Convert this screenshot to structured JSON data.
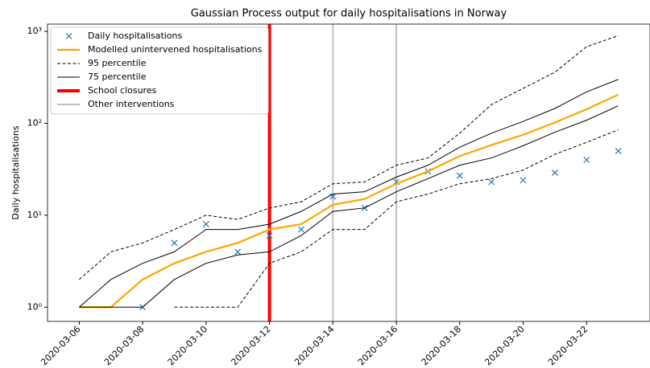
{
  "chart_data": {
    "type": "line",
    "title": "Gaussian Process output for daily hospitalisations in Norway",
    "ylabel": "Daily hospitalisations",
    "log_y": true,
    "x": [
      "2020-03-06",
      "2020-03-07",
      "2020-03-08",
      "2020-03-09",
      "2020-03-10",
      "2020-03-11",
      "2020-03-12",
      "2020-03-13",
      "2020-03-14",
      "2020-03-15",
      "2020-03-16",
      "2020-03-17",
      "2020-03-18",
      "2020-03-19",
      "2020-03-20",
      "2020-03-21",
      "2020-03-22",
      "2020-03-23"
    ],
    "xlim": [
      "2020-03-05",
      "2020-03-24"
    ],
    "xticks": [
      "2020-03-06",
      "2020-03-08",
      "2020-03-10",
      "2020-03-12",
      "2020-03-14",
      "2020-03-16",
      "2020-03-18",
      "2020-03-20",
      "2020-03-22"
    ],
    "ylim": [
      0.7,
      1200
    ],
    "yticks": [
      {
        "value": 1,
        "label": "10⁰"
      },
      {
        "value": 10,
        "label": "10¹"
      },
      {
        "value": 100,
        "label": "10²"
      },
      {
        "value": 1000,
        "label": "10³"
      }
    ],
    "legend": "upper left",
    "series": [
      {
        "name": "Daily hospitalisations",
        "color": "#1f77b4",
        "marker": "x",
        "values": [
          null,
          null,
          1,
          5,
          8,
          4,
          6,
          7,
          16,
          12,
          23,
          30,
          27,
          23,
          24,
          29,
          40,
          50
        ]
      },
      {
        "name": "Modelled unintervened hospitalisations",
        "color": "#ffa500",
        "width": 2.2,
        "values": [
          1,
          1,
          2,
          3,
          4,
          5,
          7,
          8,
          13,
          15,
          22,
          30,
          44,
          58,
          75,
          102,
          142,
          205
        ]
      },
      {
        "name": "95 percentile",
        "color": "#000000",
        "width": 1,
        "dash": true,
        "values": [
          2,
          4,
          5,
          7,
          10,
          9,
          12,
          14,
          22,
          23,
          35,
          42,
          78,
          160,
          240,
          360,
          680,
          900
        ],
        "lower": [
          null,
          null,
          null,
          1,
          1,
          1,
          3,
          4,
          7,
          7,
          14,
          17,
          22,
          25,
          31,
          46,
          62,
          85
        ]
      },
      {
        "name": "75 percentile",
        "color": "#000000",
        "width": 1,
        "values": [
          1,
          2,
          3,
          4,
          7,
          7,
          8,
          11,
          17,
          18,
          26,
          35,
          55,
          78,
          105,
          145,
          220,
          300
        ],
        "lower": [
          1,
          1,
          1,
          2,
          3,
          3.7,
          4,
          6,
          11,
          12,
          18,
          25,
          35,
          42,
          57,
          80,
          108,
          155
        ]
      }
    ],
    "vlines": [
      {
        "name": "School closures",
        "color": "#ff0000",
        "width": 4,
        "x": [
          "2020-03-12"
        ]
      },
      {
        "name": "Other interventions",
        "color": "#c0c0c0",
        "width": 2,
        "x": [
          "2020-03-14",
          "2020-03-16"
        ]
      }
    ]
  }
}
